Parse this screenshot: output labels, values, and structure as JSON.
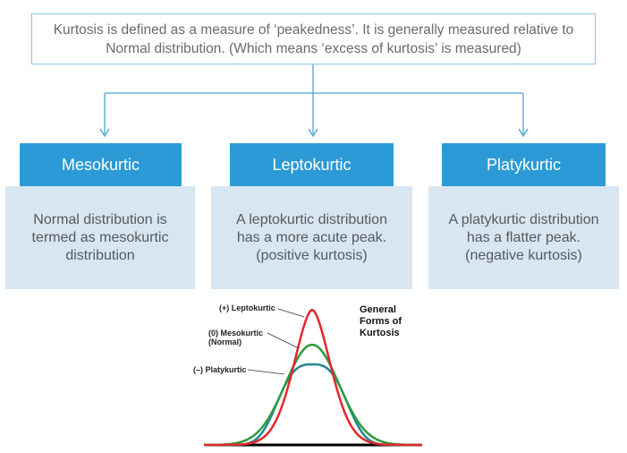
{
  "definition": {
    "text": "Kurtosis is defined as a measure of ‘peakedness’. It is generally measured relative to Normal distribution. (Which means ‘excess of kurtosis’ is measured)"
  },
  "categories": [
    {
      "title": "Mesokurtic",
      "description": "Normal distribution is\ntermed as mesokurtic\ndistribution"
    },
    {
      "title": "Leptokurtic",
      "description": "A leptokurtic distribution\nhas a more acute peak.\n(positive kurtosis)"
    },
    {
      "title": "Platykurtic",
      "description": "A platykurtic distribution\nhas a flatter peak.\n(negative kurtosis)"
    }
  ],
  "figure": {
    "title": "General\nForms of\nKurtosis",
    "labels": {
      "lepto": "(+) Leptokurtic",
      "meso": "(0)  Mesokurtic\n(Normal)",
      "platy": "(–)  Platykurtic"
    },
    "colors": {
      "lepto": "#e5262b",
      "meso": "#2e9a3f",
      "platy": "#1f8a93",
      "boxes": "#2b9ad6",
      "connector": "#4aa3d6"
    }
  }
}
